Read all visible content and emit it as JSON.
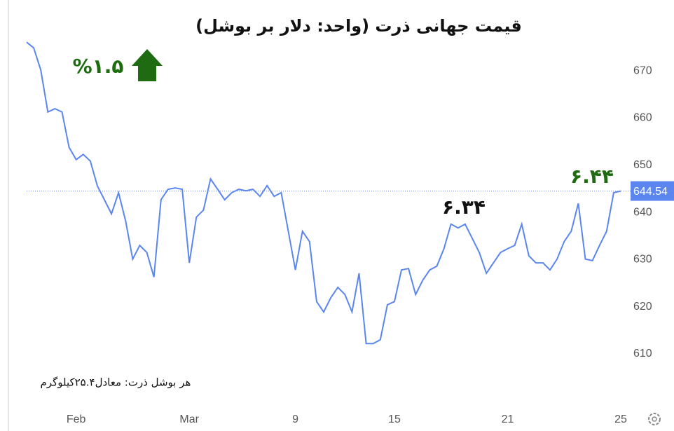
{
  "chart_data": {
    "type": "line",
    "title": "قیمت جهانی ذرت (واحد: دلار بر بوشل)",
    "categories": [
      null,
      null,
      null,
      null,
      null,
      null,
      null,
      "Feb",
      null,
      null,
      null,
      null,
      null,
      null,
      null,
      null,
      null,
      null,
      null,
      null,
      null,
      null,
      null,
      "Mar",
      null,
      null,
      null,
      null,
      null,
      null,
      null,
      null,
      null,
      null,
      null,
      null,
      null,
      null,
      "9",
      null,
      null,
      null,
      null,
      null,
      null,
      null,
      null,
      null,
      null,
      null,
      null,
      null,
      "15",
      null,
      null,
      null,
      null,
      null,
      null,
      null,
      null,
      null,
      null,
      null,
      null,
      null,
      null,
      null,
      "21",
      null,
      null,
      null,
      null,
      null,
      null,
      null,
      null,
      null,
      null,
      null,
      null,
      null,
      null,
      null,
      "25"
    ],
    "series": [
      {
        "color": "#5b86ef",
        "values": [
          676.1,
          674.9,
          670.2,
          661.3,
          662,
          661.3,
          653.8,
          651.2,
          652.3,
          650.9,
          645.6,
          642.7,
          639.7,
          644.2,
          638.2,
          630.1,
          633,
          631.5,
          626.3,
          642.7,
          644.9,
          645.2,
          644.9,
          629.3,
          639,
          640.5,
          647.1,
          644.9,
          642.7,
          644.2,
          644.9,
          644.6,
          644.9,
          643.4,
          645.7,
          643.4,
          644.2,
          636,
          627.8,
          636,
          633.8,
          621.1,
          618.9,
          621.9,
          624.1,
          622.6,
          618.9,
          627.1,
          612.2,
          612.2,
          613,
          620.4,
          621.1,
          627.8,
          628.1,
          622.6,
          625.6,
          627.8,
          628.6,
          632.3,
          637.5,
          636.7,
          637.5,
          634.5,
          631.5,
          627.1,
          629.3,
          631.5,
          632.3,
          633,
          637.5,
          630.8,
          629.3,
          629.3,
          627.8,
          630.1,
          633.8,
          636,
          641.9,
          630.1,
          629.8,
          633,
          636,
          644.2,
          644.54
        ]
      }
    ],
    "ylim": [
      600,
      678
    ],
    "yticks": [
      610,
      620,
      630,
      640,
      650,
      660,
      670
    ],
    "grid": false,
    "annotations": [
      {
        "text": "%۱.۵",
        "color": "#1e6b12"
      },
      {
        "text": "۶.۳۴",
        "color": "#111111"
      },
      {
        "text": "۶.۴۴",
        "color": "#1e6b12"
      },
      {
        "text": "هر بوشل ذرت: معادل۲۵.۴کیلوگرم",
        "color": "#111111"
      }
    ]
  }
}
